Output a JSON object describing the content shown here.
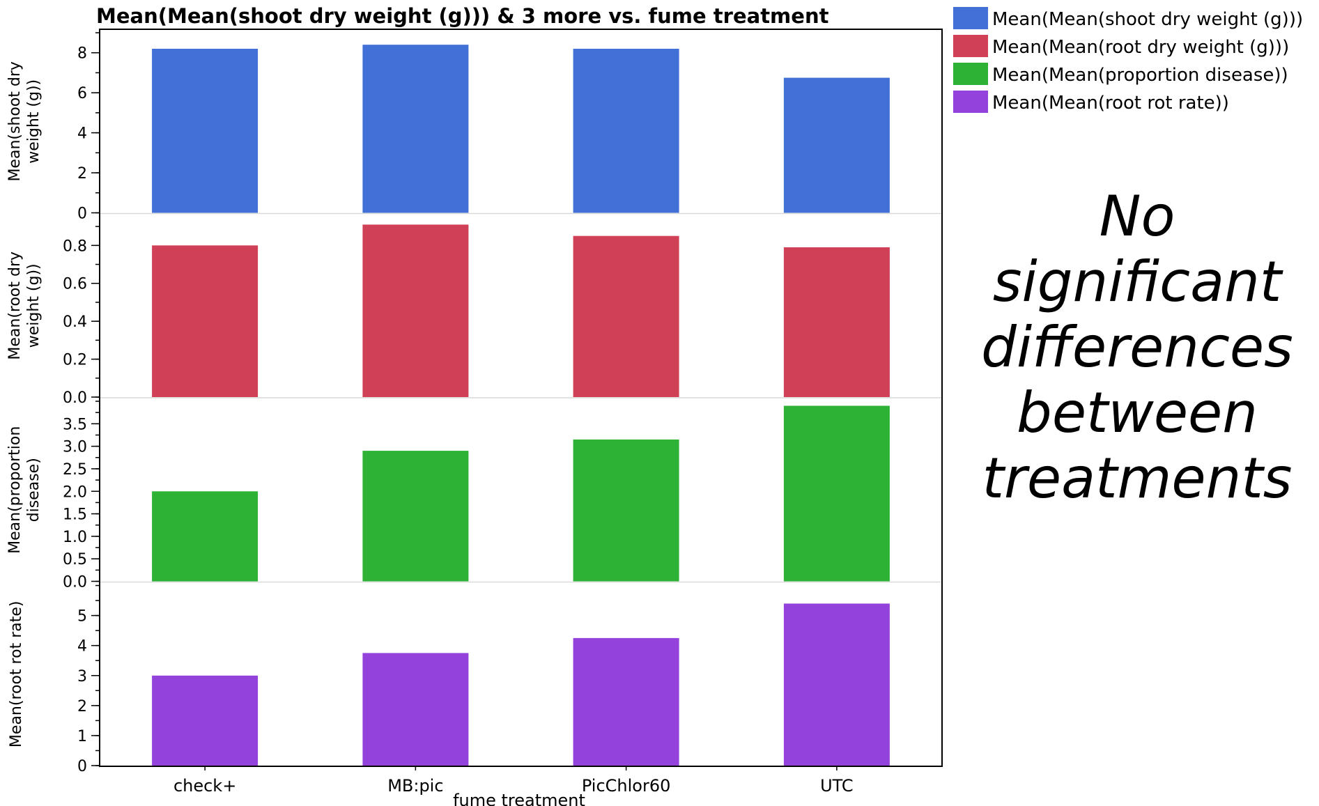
{
  "title": "Mean(Mean(shoot dry weight (g))) & 3 more vs. fume treatment",
  "note_lines": [
    "No",
    "significant",
    "differences",
    "between",
    "treatments"
  ],
  "chart_data": {
    "type": "bar",
    "title": "Mean(Mean(shoot dry weight (g))) & 3 more vs. fume treatment",
    "xlabel": "fume treatment",
    "categories": [
      "check+",
      "MB:pic",
      "PicChlor60",
      "UTC"
    ],
    "grid": false,
    "legend_position": "top-right",
    "panels": [
      {
        "ylabel_lines": [
          "Mean(shoot dry",
          "weight (g))"
        ],
        "ylim": [
          0,
          9
        ],
        "ticks": [
          0,
          2,
          4,
          6,
          8
        ],
        "tick_labels": [
          "0",
          "2",
          "4",
          "6",
          "8"
        ],
        "minor_step": 1,
        "series": {
          "name": "Mean(Mean(shoot dry weight (g)))",
          "color": "#4170d6",
          "values": [
            8.2,
            8.4,
            8.2,
            6.75
          ]
        }
      },
      {
        "ylabel_lines": [
          "Mean(root dry",
          "weight (g))"
        ],
        "ylim": [
          0,
          0.95
        ],
        "ticks": [
          0.0,
          0.2,
          0.4,
          0.6,
          0.8
        ],
        "tick_labels": [
          "0.0",
          "0.2",
          "0.4",
          "0.6",
          "0.8"
        ],
        "minor_step": 0.1,
        "series": {
          "name": "Mean(Mean(root dry weight (g)))",
          "color": "#d04057",
          "values": [
            0.8,
            0.91,
            0.85,
            0.79
          ]
        }
      },
      {
        "ylabel_lines": [
          "Mean(proportion",
          "disease)"
        ],
        "ylim": [
          0,
          4.0
        ],
        "ticks": [
          0.0,
          0.5,
          1.0,
          1.5,
          2.0,
          2.5,
          3.0,
          3.5
        ],
        "tick_labels": [
          "0.0",
          "0.5",
          "1.0",
          "1.5",
          "2.0",
          "2.5",
          "3.0",
          "3.5"
        ],
        "minor_step": 0.25,
        "series": {
          "name": "Mean(Mean(proportion disease))",
          "color": "#2db235",
          "values": [
            2.0,
            2.9,
            3.15,
            3.9
          ]
        }
      },
      {
        "ylabel_lines": [
          "Mean(root rot rate)"
        ],
        "ylim": [
          0,
          6.0
        ],
        "ticks": [
          0,
          1,
          2,
          3,
          4,
          5
        ],
        "tick_labels": [
          "0",
          "1",
          "2",
          "3",
          "4",
          "5"
        ],
        "minor_step": 0.5,
        "series": {
          "name": "Mean(Mean(root rot rate))",
          "color": "#9342db",
          "values": [
            3.0,
            3.75,
            4.25,
            5.4
          ]
        }
      }
    ]
  }
}
